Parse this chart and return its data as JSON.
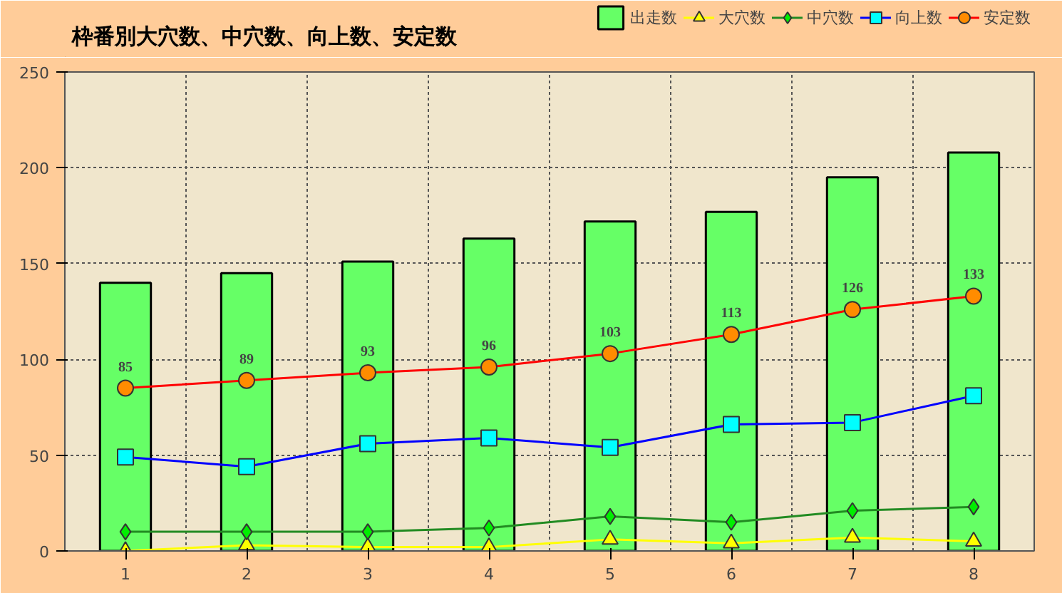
{
  "chart_data": {
    "type": "line",
    "title": "枠番別大穴数、中穴数、向上数、安定数",
    "categories": [
      "1",
      "2",
      "3",
      "4",
      "5",
      "6",
      "7",
      "8"
    ],
    "series": [
      {
        "name": "出走数",
        "type": "bar",
        "color": "#66ff66",
        "values": [
          140,
          145,
          151,
          163,
          172,
          177,
          195,
          208
        ]
      },
      {
        "name": "大穴数",
        "color": "#ffff00",
        "marker": "triangle",
        "values": [
          0,
          3,
          2,
          2,
          6,
          4,
          7,
          5
        ]
      },
      {
        "name": "中穴数",
        "color": "#228b22",
        "marker": "diamond",
        "values": [
          10,
          10,
          10,
          12,
          18,
          15,
          21,
          23
        ]
      },
      {
        "name": "向上数",
        "color": "#0000ff",
        "marker": "square",
        "values": [
          49,
          44,
          56,
          59,
          54,
          66,
          67,
          81
        ]
      },
      {
        "name": "安定数",
        "color": "#ff0000",
        "marker": "circle",
        "values": [
          85,
          89,
          93,
          96,
          103,
          113,
          126,
          133
        ],
        "value_labels": [
          "85",
          "89",
          "93",
          "96",
          "103",
          "113",
          "126",
          "133"
        ]
      }
    ],
    "ylim": [
      0,
      250
    ],
    "yticks": [
      0,
      50,
      100,
      150,
      200,
      250
    ],
    "grid": true,
    "legend": "top right"
  }
}
